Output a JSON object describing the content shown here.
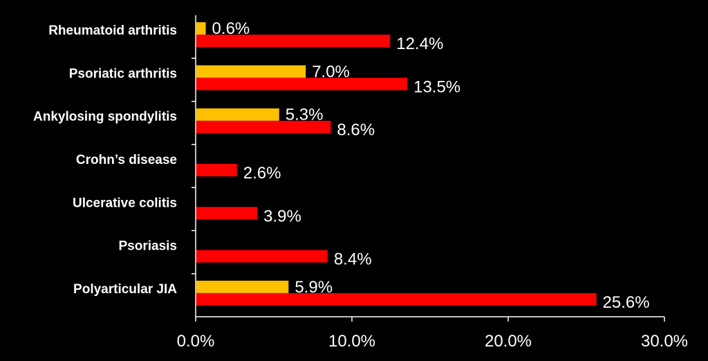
{
  "chart_data": {
    "type": "bar",
    "orientation": "horizontal",
    "categories": [
      "Rheumatoid arthritis",
      "Psoriatic arthritis",
      "Ankylosing spondylitis",
      "Crohn’s disease",
      "Ulcerative colitis",
      "Psoriasis",
      "Polyarticular JIA"
    ],
    "series": [
      {
        "color": "#FFC000",
        "values": [
          0.6,
          7.0,
          5.3,
          null,
          null,
          null,
          5.9
        ],
        "labels": [
          "0.6%",
          "7.0%",
          "5.3%",
          null,
          null,
          null,
          "5.9%"
        ]
      },
      {
        "color": "#FF0000",
        "values": [
          12.4,
          13.5,
          8.6,
          2.6,
          3.9,
          8.4,
          25.6
        ],
        "labels": [
          "12.4%",
          "13.5%",
          "8.6%",
          "2.6%",
          "3.9%",
          "8.4%",
          "25.6%"
        ]
      }
    ],
    "xlim": [
      0,
      30
    ],
    "xticks": [
      0,
      10,
      20,
      30
    ],
    "xtick_labels": [
      "0.0%",
      "10.0%",
      "20.0%",
      "30.0%"
    ],
    "grid": false,
    "legend": "none",
    "title": "",
    "xlabel": "",
    "ylabel": ""
  }
}
